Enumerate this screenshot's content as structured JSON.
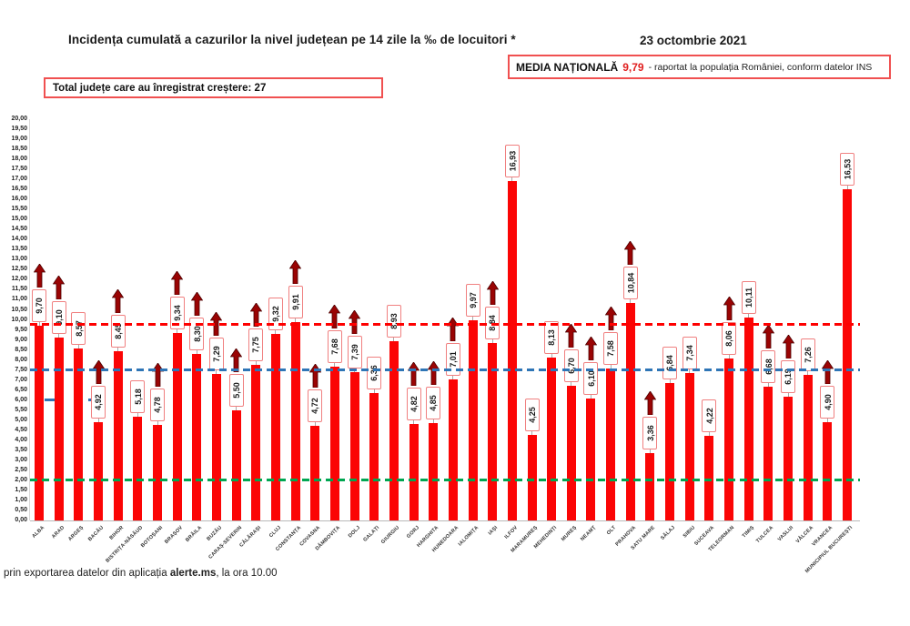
{
  "page": {
    "title": "Incidența cumulată a cazurilor la nivel județean pe 14 zile la ‰ de locuitori *",
    "date": "23 octombrie 2021",
    "national_average": {
      "label": "MEDIA NAȚIONALĂ",
      "value": "9,79",
      "suffix": "-  raportat la populația României, conform datelor INS"
    },
    "total_increase_label": "Total județe care au înregistrat creștere:  27",
    "footer": {
      "prefix": "prin exportarea datelor din aplicația ",
      "bold": "alerte.ms",
      "suffix": ", la ora 10.00"
    }
  },
  "chart_data": {
    "type": "bar",
    "title": "Incidența cumulată a cazurilor la nivel județean pe 14 zile la ‰ de locuitori *",
    "xlabel": "",
    "ylabel": "",
    "ylim": [
      0,
      20
    ],
    "ytick_step": 0.5,
    "grid": false,
    "bar_color": "#fb0505",
    "categories": [
      "ALBA",
      "ARAD",
      "ARGEȘ",
      "BACĂU",
      "BIHOR",
      "BISTRIȚA-NĂSĂUD",
      "BOTOȘANI",
      "BRAȘOV",
      "BRĂILA",
      "BUZĂU",
      "CARAȘ-SEVERIN",
      "CĂLĂRAȘI",
      "CLUJ",
      "CONSTANȚA",
      "COVASNA",
      "DÂMBOVIȚA",
      "DOLJ",
      "GALAȚI",
      "GIURGIU",
      "GORJ",
      "HARGHITA",
      "HUNEDOARA",
      "IALOMIȚA",
      "IAȘI",
      "ILFOV",
      "MARAMUREȘ",
      "MEHEDINȚI",
      "MUREȘ",
      "NEAMȚ",
      "OLT",
      "PRAHOVA",
      "SATU MARE",
      "SĂLAJ",
      "SIBIU",
      "SUCEAVA",
      "TELEORMAN",
      "TIMIȘ",
      "TULCEA",
      "VASLUI",
      "VÂLCEA",
      "VRANCEA",
      "MUNICIPIUL BUCUREȘTI"
    ],
    "values": [
      9.7,
      9.1,
      8.57,
      4.92,
      8.45,
      5.18,
      4.78,
      9.34,
      8.3,
      7.29,
      5.5,
      7.75,
      9.32,
      9.91,
      4.72,
      7.68,
      7.39,
      6.36,
      8.93,
      4.82,
      4.85,
      7.01,
      9.97,
      8.84,
      16.93,
      4.25,
      8.13,
      6.7,
      6.1,
      7.58,
      10.84,
      3.36,
      6.84,
      7.34,
      4.22,
      8.06,
      10.11,
      6.68,
      6.19,
      7.26,
      4.9,
      16.53
    ],
    "labels": [
      "9,70",
      "9,10",
      "8,57",
      "4,92",
      "8,45",
      "5,18",
      "4,78",
      "9,34",
      "8,30",
      "7,29",
      "5,50",
      "7,75",
      "9,32",
      "9,91",
      "4,72",
      "7,68",
      "7,39",
      "6,36",
      "8,93",
      "4,82",
      "4,85",
      "7,01",
      "9,97",
      "8,84",
      "16,93",
      "4,25",
      "8,13",
      "6,70",
      "6,10",
      "7,58",
      "10,84",
      "3,36",
      "6,84",
      "7,34",
      "4,22",
      "8,06",
      "10,11",
      "6,68",
      "6,19",
      "7,26",
      "4,90",
      "16,53"
    ],
    "increase_arrow": [
      true,
      true,
      false,
      true,
      true,
      false,
      true,
      true,
      true,
      true,
      true,
      true,
      false,
      true,
      true,
      true,
      true,
      false,
      false,
      true,
      true,
      true,
      false,
      true,
      false,
      false,
      false,
      true,
      true,
      true,
      true,
      true,
      false,
      false,
      false,
      true,
      false,
      true,
      true,
      false,
      true,
      false
    ],
    "reference_lines": [
      {
        "name": "media-nationala",
        "value": 9.79,
        "color": "#fe0000"
      },
      {
        "name": "reference-7-50",
        "value": 7.5,
        "color": "#2e75b6"
      },
      {
        "name": "reference-2-00",
        "value": 2.0,
        "color": "#00a651"
      }
    ],
    "legend": null,
    "arrow_color": "#9a0404"
  }
}
